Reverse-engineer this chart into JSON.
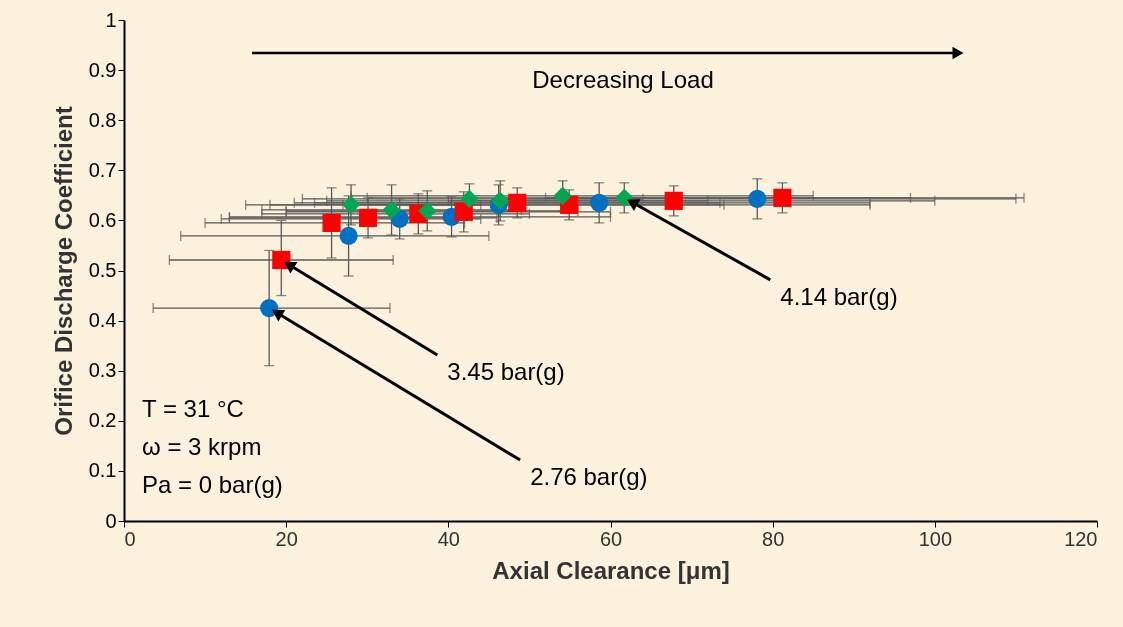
{
  "chart_data": {
    "type": "scatter",
    "xlabel": "Axial Clearance [μm]",
    "ylabel": "Orifice Discharge Coefficient",
    "xlim": [
      0,
      120
    ],
    "ylim": [
      0,
      1
    ],
    "xticks": [
      0,
      20,
      40,
      60,
      80,
      100,
      120
    ],
    "yticks": [
      {
        "value": 0,
        "label": "0"
      },
      0.1,
      0.2,
      0.3,
      0.4,
      0.5,
      0.6,
      0.7,
      0.8,
      0.9,
      {
        "value": 1,
        "label": "1"
      }
    ],
    "series": [
      {
        "color": "#0070c0",
        "marker": "circle",
        "x": [
          17.9,
          27.7,
          34.0,
          40.4,
          46.2,
          58.6,
          78.1
        ],
        "values": [
          0.425,
          0.569,
          0.603,
          0.607,
          0.631,
          0.635,
          0.643
        ],
        "errors": [
          [
            0.31,
            0.54
          ],
          0.08,
          0.04,
          0.04,
          0.04,
          0.04,
          0.04
        ],
        "xerrors": [
          [
            3.6,
            32.8
          ],
          [
            7,
            45
          ],
          [
            12,
            44
          ],
          [
            13,
            60
          ],
          [
            18,
            74
          ],
          [
            21,
            92
          ],
          [
            46,
            110
          ]
        ]
      },
      {
        "color": "#ff0000",
        "marker": "square",
        "x": [
          19.4,
          25.6,
          30.1,
          36.3,
          41.9,
          48.5,
          54.9,
          67.8,
          81.2
        ],
        "values": [
          0.521,
          0.595,
          0.605,
          0.613,
          0.617,
          0.635,
          0.631,
          0.639,
          0.645
        ],
        "errors": [
          [
            0.45,
            0.6
          ],
          0.07,
          0.04,
          0.04,
          0.04,
          0.03,
          0.03,
          0.03,
          0.03
        ],
        "xerrors": [
          [
            5.6,
            33.2
          ],
          [
            10,
            42
          ],
          [
            13,
            46
          ],
          [
            17,
            50
          ],
          [
            20,
            60
          ],
          25,
          [
            27,
            92
          ],
          [
            40,
            100
          ],
          [
            52,
            111
          ]
        ]
      },
      {
        "color": "#00a651",
        "marker": "diamond",
        "x": [
          28.0,
          33.0,
          37.4,
          42.6,
          46.4,
          54.1,
          61.7
        ],
        "values": [
          0.631,
          0.621,
          0.619,
          0.643,
          0.639,
          0.649,
          0.645
        ],
        "errors": [
          0.04,
          0.05,
          0.04,
          0.03,
          0.04,
          0.03,
          0.03
        ],
        "xerrors": [
          [
            15,
            44
          ],
          16,
          [
            20,
            56
          ],
          [
            22,
            64
          ],
          [
            25,
            72
          ],
          [
            28,
            85
          ],
          [
            30,
            97
          ]
        ]
      }
    ],
    "annotations": [
      {
        "text": "2.76 bar(g)",
        "x": 17.9,
        "y": 0.425
      },
      {
        "text": "3.45 bar(g)",
        "x": 19.4,
        "y": 0.521
      },
      {
        "text": "4.14 bar(g)",
        "x": 61.7,
        "y": 0.645
      },
      "Decreasing Load",
      "T = 31 °C",
      "ω = 3 krpm",
      "Pa = 0 bar(g)"
    ]
  }
}
